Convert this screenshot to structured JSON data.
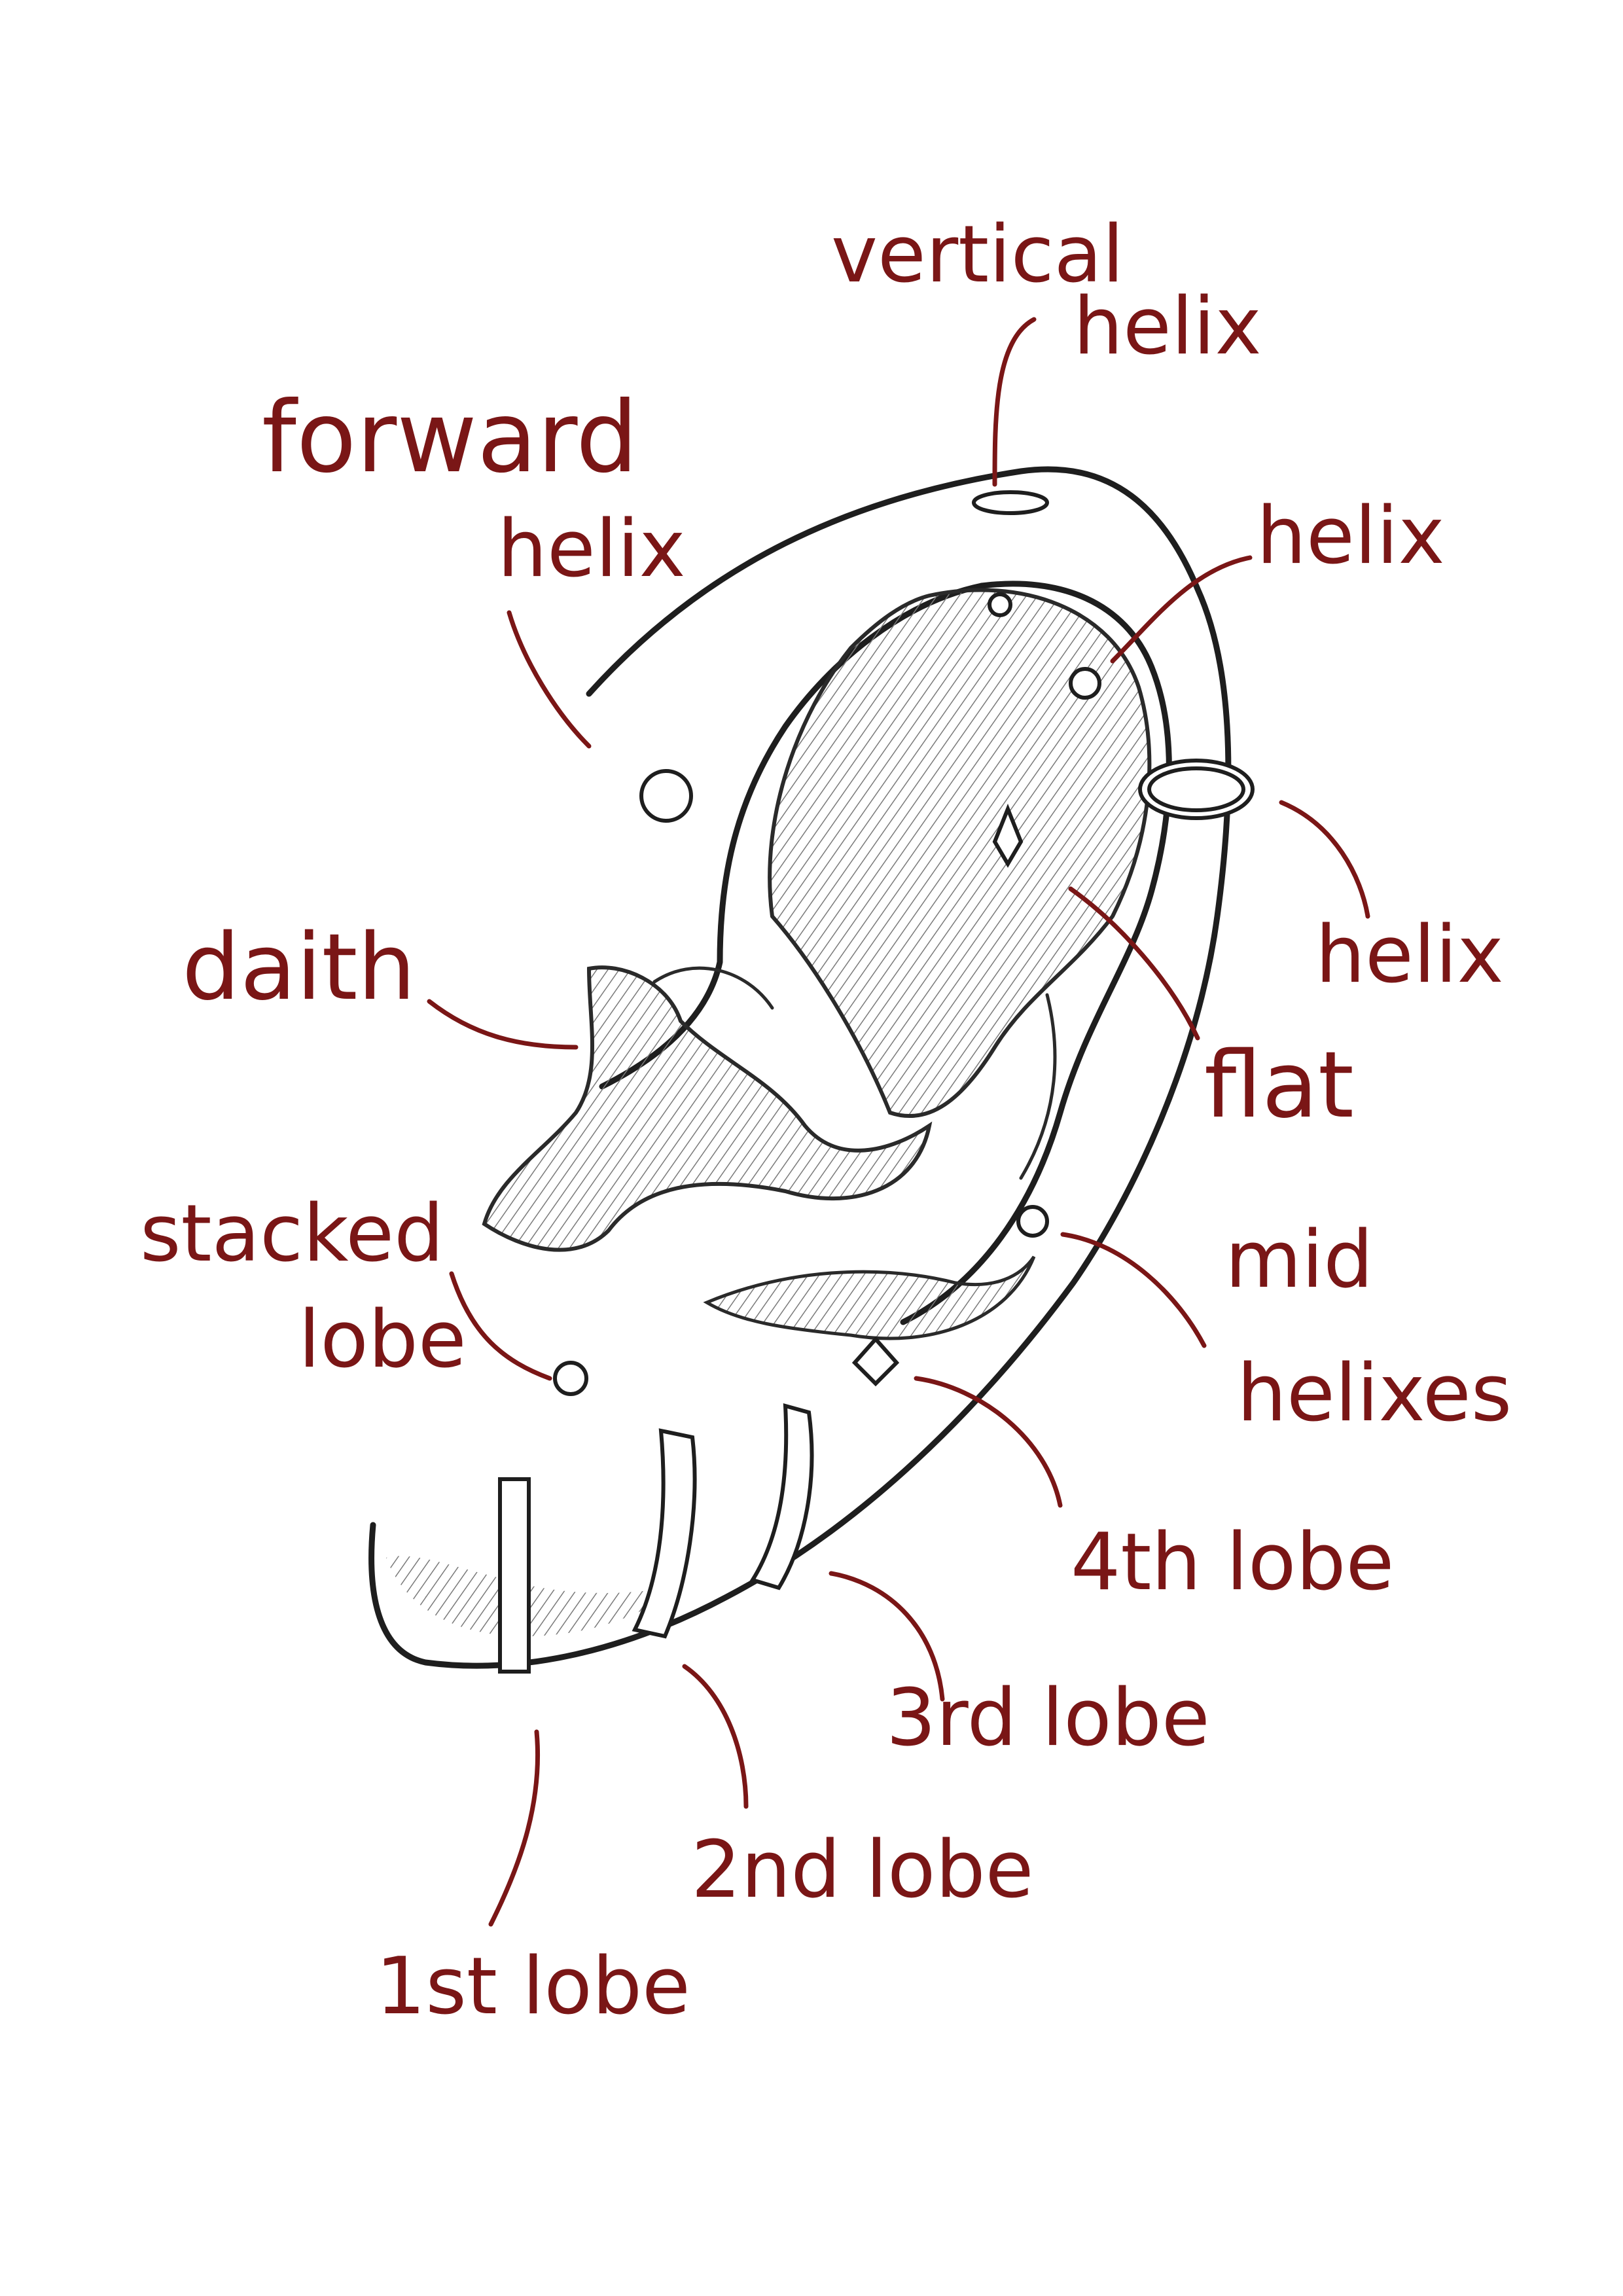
{
  "labels": {
    "vertical_helix_line1": "vertical",
    "vertical_helix_line2": "helix",
    "forward_helix_line1": "forward",
    "forward_helix_line2": "helix",
    "helix_upper": "helix",
    "helix_lower": "helix",
    "daith": "daith",
    "flat": "flat",
    "stacked_lobe_line1": "stacked",
    "stacked_lobe_line2": "lobe",
    "mid_helixes_line1": "mid",
    "mid_helixes_line2": "helixes",
    "lobe_4th": "4th lobe",
    "lobe_3rd": "3rd lobe",
    "lobe_2nd": "2nd lobe",
    "lobe_1st": "1st lobe"
  },
  "colors": {
    "label": "#7a1616",
    "outline": "#1e1e1e",
    "background": "#ffffff"
  }
}
